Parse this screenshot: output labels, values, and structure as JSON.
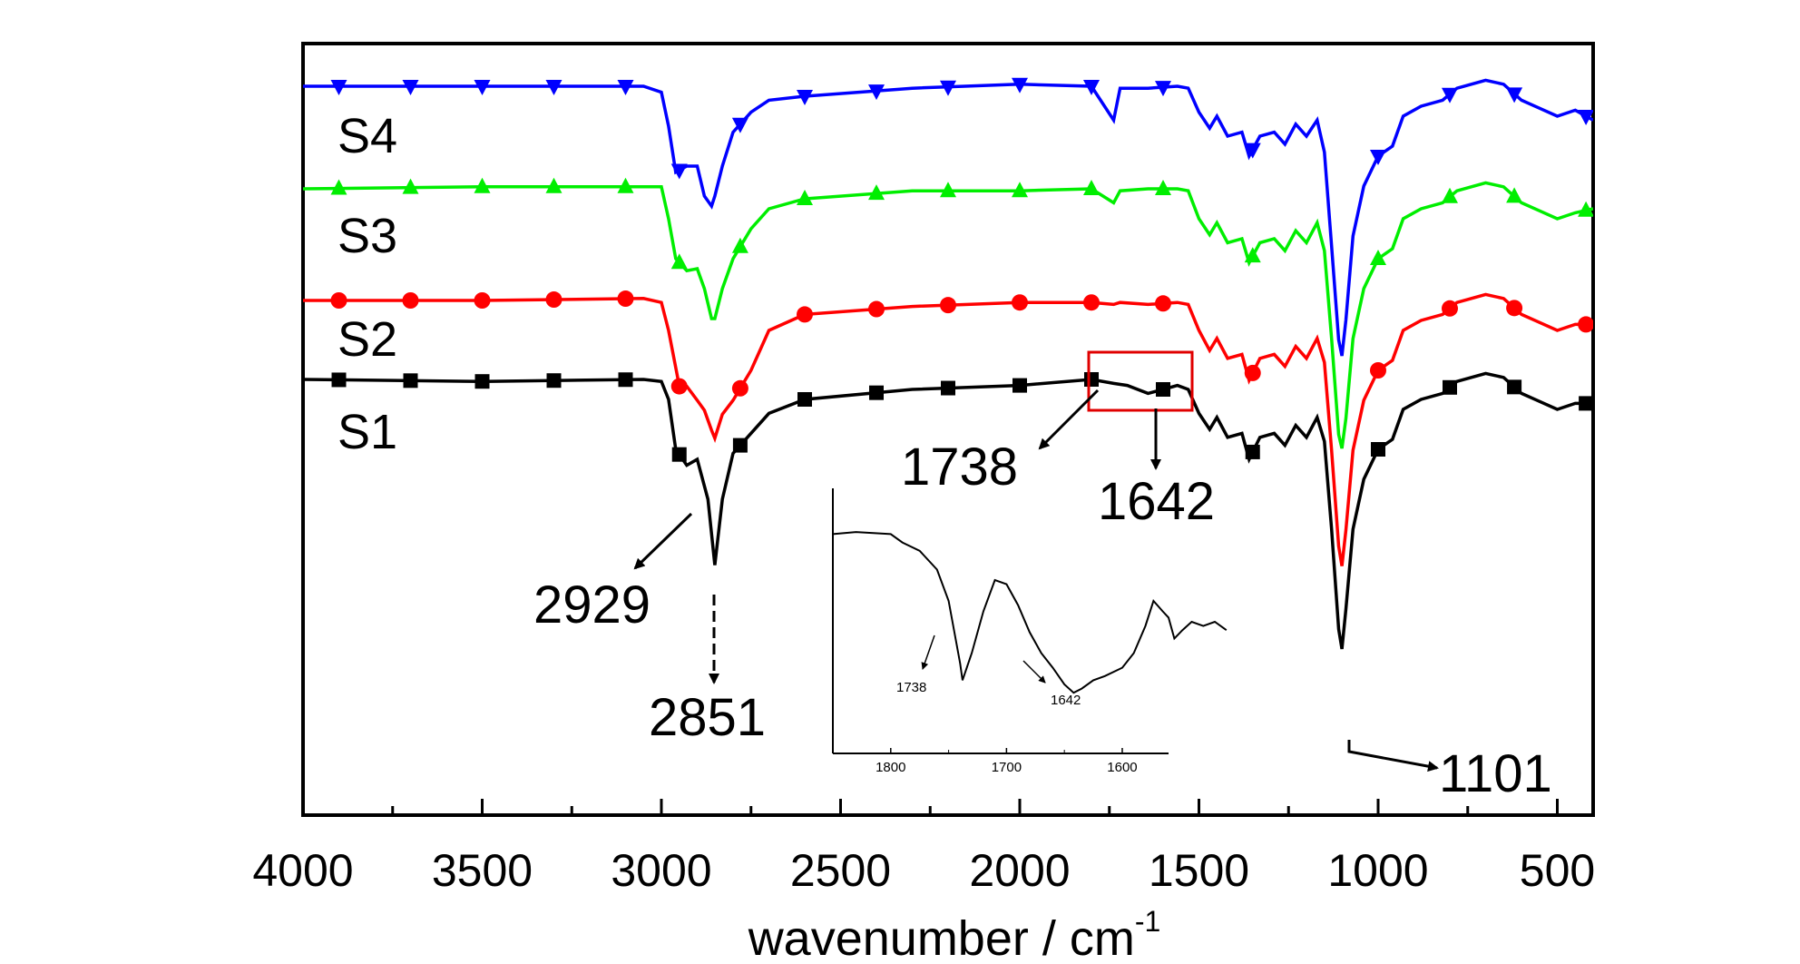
{
  "chart_data": {
    "type": "line",
    "xlabel": "wavenumber / cm",
    "xlabel_superscript": "-1",
    "xlim": [
      4000,
      400
    ],
    "x_ticks": [
      4000,
      3500,
      3000,
      2500,
      2000,
      1500,
      1000,
      500
    ],
    "x_tick_labels": [
      "4000",
      "3500",
      "3000",
      "2500",
      "2000",
      "1500",
      "1000",
      "500"
    ],
    "y_ticks_shown": false,
    "grid": false,
    "legend": "none",
    "series": [
      {
        "name": "S1",
        "color": "#000000",
        "marker": "square",
        "points": [
          [
            4000,
            0.45
          ],
          [
            3500,
            0.44
          ],
          [
            3050,
            0.45
          ],
          [
            3000,
            0.44
          ],
          [
            2980,
            0.35
          ],
          [
            2960,
            0.1
          ],
          [
            2929,
            0.02
          ],
          [
            2900,
            0.05
          ],
          [
            2870,
            -0.15
          ],
          [
            2851,
            -0.48
          ],
          [
            2830,
            -0.15
          ],
          [
            2800,
            0.08
          ],
          [
            2700,
            0.28
          ],
          [
            2600,
            0.35
          ],
          [
            2300,
            0.4
          ],
          [
            2000,
            0.42
          ],
          [
            1800,
            0.45
          ],
          [
            1738,
            0.43
          ],
          [
            1700,
            0.42
          ],
          [
            1642,
            0.38
          ],
          [
            1600,
            0.4
          ],
          [
            1560,
            0.42
          ],
          [
            1530,
            0.4
          ],
          [
            1500,
            0.28
          ],
          [
            1470,
            0.2
          ],
          [
            1450,
            0.26
          ],
          [
            1420,
            0.16
          ],
          [
            1380,
            0.18
          ],
          [
            1360,
            0.05
          ],
          [
            1330,
            0.16
          ],
          [
            1290,
            0.18
          ],
          [
            1260,
            0.12
          ],
          [
            1230,
            0.22
          ],
          [
            1200,
            0.16
          ],
          [
            1170,
            0.26
          ],
          [
            1150,
            0.14
          ],
          [
            1130,
            -0.3
          ],
          [
            1110,
            -0.8
          ],
          [
            1101,
            -0.9
          ],
          [
            1090,
            -0.7
          ],
          [
            1070,
            -0.3
          ],
          [
            1040,
            -0.05
          ],
          [
            1000,
            0.1
          ],
          [
            960,
            0.15
          ],
          [
            930,
            0.3
          ],
          [
            880,
            0.35
          ],
          [
            820,
            0.38
          ],
          [
            780,
            0.44
          ],
          [
            700,
            0.48
          ],
          [
            650,
            0.46
          ],
          [
            600,
            0.38
          ],
          [
            550,
            0.34
          ],
          [
            500,
            0.3
          ],
          [
            450,
            0.33
          ],
          [
            400,
            0.33
          ]
        ]
      },
      {
        "name": "S2",
        "color": "#ff0000",
        "marker": "circle",
        "points": [
          [
            4000,
            0.45
          ],
          [
            3500,
            0.45
          ],
          [
            3050,
            0.46
          ],
          [
            3000,
            0.44
          ],
          [
            2980,
            0.3
          ],
          [
            2950,
            0.02
          ],
          [
            2929,
            0.02
          ],
          [
            2900,
            -0.05
          ],
          [
            2880,
            -0.1
          ],
          [
            2860,
            -0.2
          ],
          [
            2851,
            -0.24
          ],
          [
            2830,
            -0.12
          ],
          [
            2800,
            -0.05
          ],
          [
            2750,
            0.1
          ],
          [
            2700,
            0.3
          ],
          [
            2600,
            0.38
          ],
          [
            2300,
            0.42
          ],
          [
            2000,
            0.44
          ],
          [
            1800,
            0.44
          ],
          [
            1738,
            0.43
          ],
          [
            1720,
            0.44
          ],
          [
            1642,
            0.43
          ],
          [
            1560,
            0.44
          ],
          [
            1530,
            0.43
          ],
          [
            1500,
            0.3
          ],
          [
            1470,
            0.2
          ],
          [
            1450,
            0.26
          ],
          [
            1420,
            0.16
          ],
          [
            1380,
            0.18
          ],
          [
            1360,
            0.05
          ],
          [
            1330,
            0.16
          ],
          [
            1290,
            0.18
          ],
          [
            1260,
            0.12
          ],
          [
            1230,
            0.22
          ],
          [
            1200,
            0.16
          ],
          [
            1170,
            0.26
          ],
          [
            1150,
            0.14
          ],
          [
            1130,
            -0.3
          ],
          [
            1110,
            -0.78
          ],
          [
            1101,
            -0.88
          ],
          [
            1090,
            -0.7
          ],
          [
            1070,
            -0.3
          ],
          [
            1040,
            -0.05
          ],
          [
            1000,
            0.1
          ],
          [
            960,
            0.15
          ],
          [
            930,
            0.3
          ],
          [
            880,
            0.35
          ],
          [
            820,
            0.38
          ],
          [
            780,
            0.44
          ],
          [
            700,
            0.48
          ],
          [
            650,
            0.46
          ],
          [
            600,
            0.38
          ],
          [
            550,
            0.34
          ],
          [
            500,
            0.3
          ],
          [
            450,
            0.33
          ],
          [
            400,
            0.33
          ]
        ]
      },
      {
        "name": "S3",
        "color": "#00ee00",
        "marker": "triangle-up",
        "points": [
          [
            4000,
            0.45
          ],
          [
            3500,
            0.46
          ],
          [
            3050,
            0.46
          ],
          [
            3000,
            0.46
          ],
          [
            2980,
            0.3
          ],
          [
            2960,
            0.1
          ],
          [
            2929,
            0.04
          ],
          [
            2900,
            0.05
          ],
          [
            2880,
            -0.05
          ],
          [
            2860,
            -0.2
          ],
          [
            2851,
            -0.2
          ],
          [
            2830,
            -0.05
          ],
          [
            2800,
            0.1
          ],
          [
            2750,
            0.25
          ],
          [
            2700,
            0.35
          ],
          [
            2600,
            0.4
          ],
          [
            2300,
            0.44
          ],
          [
            2000,
            0.44
          ],
          [
            1800,
            0.45
          ],
          [
            1738,
            0.38
          ],
          [
            1720,
            0.44
          ],
          [
            1642,
            0.45
          ],
          [
            1560,
            0.45
          ],
          [
            1530,
            0.44
          ],
          [
            1500,
            0.3
          ],
          [
            1470,
            0.22
          ],
          [
            1450,
            0.28
          ],
          [
            1420,
            0.18
          ],
          [
            1380,
            0.2
          ],
          [
            1360,
            0.08
          ],
          [
            1330,
            0.18
          ],
          [
            1290,
            0.2
          ],
          [
            1260,
            0.14
          ],
          [
            1230,
            0.24
          ],
          [
            1200,
            0.18
          ],
          [
            1170,
            0.28
          ],
          [
            1150,
            0.14
          ],
          [
            1130,
            -0.3
          ],
          [
            1110,
            -0.78
          ],
          [
            1101,
            -0.85
          ],
          [
            1090,
            -0.7
          ],
          [
            1070,
            -0.3
          ],
          [
            1040,
            -0.05
          ],
          [
            1000,
            0.1
          ],
          [
            960,
            0.15
          ],
          [
            930,
            0.3
          ],
          [
            880,
            0.35
          ],
          [
            820,
            0.38
          ],
          [
            780,
            0.44
          ],
          [
            700,
            0.48
          ],
          [
            650,
            0.46
          ],
          [
            600,
            0.38
          ],
          [
            550,
            0.34
          ],
          [
            500,
            0.3
          ],
          [
            450,
            0.33
          ],
          [
            400,
            0.35
          ]
        ]
      },
      {
        "name": "S4",
        "color": "#0000ff",
        "marker": "triangle-down",
        "points": [
          [
            4000,
            0.45
          ],
          [
            3500,
            0.45
          ],
          [
            3050,
            0.45
          ],
          [
            3000,
            0.42
          ],
          [
            2980,
            0.25
          ],
          [
            2960,
            0.02
          ],
          [
            2929,
            0.05
          ],
          [
            2900,
            0.05
          ],
          [
            2880,
            -0.1
          ],
          [
            2860,
            -0.15
          ],
          [
            2851,
            -0.1
          ],
          [
            2830,
            0.05
          ],
          [
            2800,
            0.22
          ],
          [
            2750,
            0.32
          ],
          [
            2700,
            0.38
          ],
          [
            2600,
            0.4
          ],
          [
            2300,
            0.44
          ],
          [
            2000,
            0.46
          ],
          [
            1800,
            0.45
          ],
          [
            1738,
            0.28
          ],
          [
            1720,
            0.44
          ],
          [
            1642,
            0.44
          ],
          [
            1560,
            0.45
          ],
          [
            1530,
            0.44
          ],
          [
            1500,
            0.32
          ],
          [
            1470,
            0.24
          ],
          [
            1450,
            0.3
          ],
          [
            1420,
            0.2
          ],
          [
            1380,
            0.22
          ],
          [
            1360,
            0.1
          ],
          [
            1330,
            0.2
          ],
          [
            1290,
            0.22
          ],
          [
            1260,
            0.16
          ],
          [
            1230,
            0.26
          ],
          [
            1200,
            0.2
          ],
          [
            1170,
            0.28
          ],
          [
            1150,
            0.12
          ],
          [
            1130,
            -0.35
          ],
          [
            1110,
            -0.82
          ],
          [
            1101,
            -0.9
          ],
          [
            1090,
            -0.72
          ],
          [
            1070,
            -0.3
          ],
          [
            1040,
            -0.05
          ],
          [
            1000,
            0.1
          ],
          [
            960,
            0.15
          ],
          [
            930,
            0.3
          ],
          [
            880,
            0.35
          ],
          [
            820,
            0.38
          ],
          [
            780,
            0.44
          ],
          [
            700,
            0.48
          ],
          [
            650,
            0.46
          ],
          [
            600,
            0.38
          ],
          [
            550,
            0.34
          ],
          [
            500,
            0.3
          ],
          [
            450,
            0.33
          ],
          [
            400,
            0.28
          ]
        ]
      }
    ],
    "series_labels": [
      "S4",
      "S3",
      "S2",
      "S1"
    ],
    "annotations": [
      "2929",
      "2851",
      "1738",
      "1642",
      "1101"
    ],
    "inset": {
      "xlim": [
        1850,
        1560
      ],
      "x_ticks": [
        1800,
        1700,
        1600
      ],
      "x_tick_labels": [
        "1800",
        "1700",
        "1600"
      ],
      "annotations": [
        "1738",
        "1642"
      ],
      "points": [
        [
          1850,
          0.92
        ],
        [
          1830,
          0.93
        ],
        [
          1800,
          0.92
        ],
        [
          1790,
          0.88
        ],
        [
          1775,
          0.84
        ],
        [
          1760,
          0.75
        ],
        [
          1750,
          0.6
        ],
        [
          1740,
          0.3
        ],
        [
          1738,
          0.22
        ],
        [
          1730,
          0.35
        ],
        [
          1720,
          0.55
        ],
        [
          1710,
          0.7
        ],
        [
          1700,
          0.68
        ],
        [
          1690,
          0.58
        ],
        [
          1680,
          0.45
        ],
        [
          1670,
          0.35
        ],
        [
          1660,
          0.28
        ],
        [
          1650,
          0.2
        ],
        [
          1642,
          0.16
        ],
        [
          1635,
          0.18
        ],
        [
          1625,
          0.22
        ],
        [
          1615,
          0.24
        ],
        [
          1600,
          0.28
        ],
        [
          1590,
          0.35
        ],
        [
          1580,
          0.48
        ],
        [
          1573,
          0.6
        ],
        [
          1565,
          0.55
        ],
        [
          1560,
          0.52
        ],
        [
          1555,
          0.42
        ],
        [
          1548,
          0.46
        ],
        [
          1540,
          0.5
        ],
        [
          1530,
          0.48
        ],
        [
          1520,
          0.5
        ],
        [
          1510,
          0.46
        ]
      ]
    }
  }
}
